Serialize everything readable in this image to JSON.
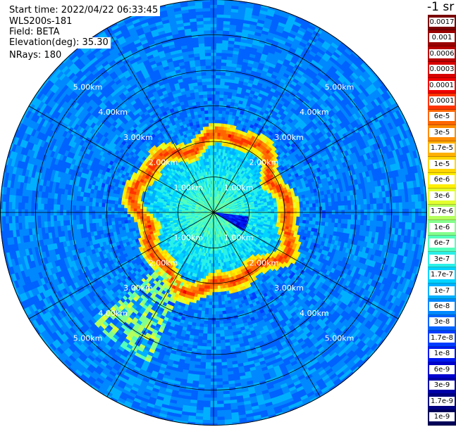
{
  "header": {
    "start_time": "Start time: 2022/04/22 06:33:45",
    "instrument": "WLS200s-181",
    "field": "Field: BETA",
    "elevation": "Elevation(deg): 35.30",
    "nrays": "NRays: 180"
  },
  "colorbar": {
    "title": "-1 sr",
    "labels": [
      "0.0017",
      "0.001",
      "0.0006",
      "0.0003",
      "0.00017",
      "0.0001",
      "6e-5",
      "3e-5",
      "1.7e-5",
      "1e-5",
      "6e-6",
      "3e-6",
      "1.7e-6",
      "1e-6",
      "6e-7",
      "3e-7",
      "1.7e-7",
      "1e-7",
      "6e-8",
      "3e-8",
      "1.7e-8",
      "1e-8",
      "6e-9",
      "3e-9",
      "1.7e-9",
      "1e-9"
    ],
    "colors": [
      "#7a0000",
      "#990000",
      "#b80000",
      "#d80000",
      "#f00000",
      "#ff3300",
      "#ff6600",
      "#ff8c00",
      "#ffb000",
      "#ffd600",
      "#ffef00",
      "#e4ff2e",
      "#b4ff5c",
      "#84ff8c",
      "#54ffbc",
      "#2af0e8",
      "#00d4ff",
      "#00b0ff",
      "#0088ff",
      "#0062ff",
      "#003cff",
      "#0018f0",
      "#0000d0",
      "#0000a8",
      "#000080",
      "#000058"
    ]
  },
  "chart_data": {
    "type": "heatmap",
    "projection": "polar-ppi",
    "field": "BETA",
    "units": "sr-1",
    "nrays": 180,
    "elevation_deg": 35.3,
    "range_rings_km": [
      1,
      2,
      3,
      4,
      5
    ],
    "ring_labels": [
      "1.00km",
      "2.00km",
      "3.00km",
      "4.00km",
      "5.00km"
    ],
    "max_range_km": 6.0,
    "spokes_deg": [
      0,
      30,
      60,
      90,
      120,
      150,
      180,
      210,
      240,
      270,
      300,
      330
    ],
    "background_level": "3e-8",
    "features": [
      {
        "name": "aerosol-ring",
        "radius_km": 2.1,
        "value": "6e-5"
      },
      {
        "name": "inner-fill",
        "value": "1e-6"
      },
      {
        "name": "near-wedge",
        "azimuth_deg": 110,
        "value": "1e-8"
      },
      {
        "name": "sw-plume",
        "azimuth_deg": 215,
        "value": "1e-6"
      }
    ]
  }
}
